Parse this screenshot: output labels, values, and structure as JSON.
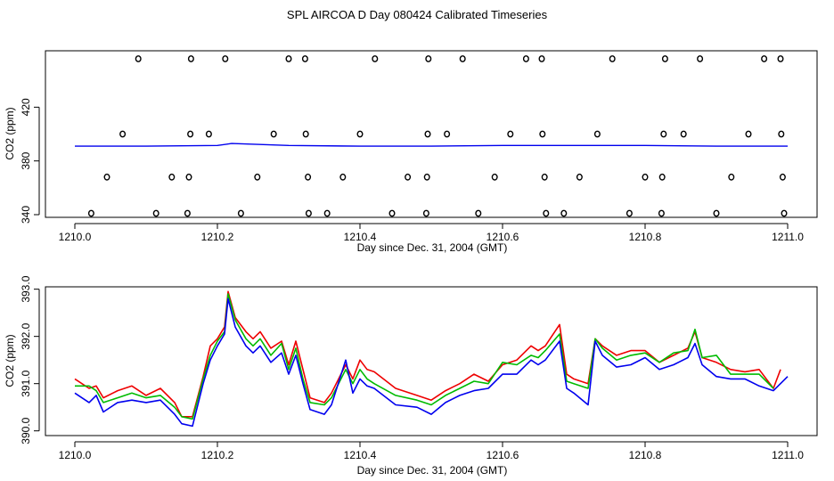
{
  "title": "SPL AIRCOA D  Day 080424  Calibrated Timeseries",
  "colors": {
    "red": "#ee0000",
    "green": "#00bb00",
    "blue": "#0000ee",
    "axis": "#000000"
  },
  "chart_data": [
    {
      "type": "scatter",
      "panel": "top",
      "xlabel": "Day since Dec. 31, 2004 (GMT)",
      "ylabel": "CO2 (ppm)",
      "xlim": [
        1210.0,
        1211.0
      ],
      "ylim": [
        338,
        462
      ],
      "xticks": [
        1210.0,
        1210.2,
        1210.4,
        1210.6,
        1210.8,
        1211.0
      ],
      "xtick_labels": [
        "1210.0",
        "1210.2",
        "1210.4",
        "1210.6",
        "1210.8",
        "1211.0"
      ],
      "yticks": [
        340,
        380,
        420
      ],
      "ytick_labels": [
        "340",
        "380",
        "420"
      ],
      "line_series": [
        {
          "name": "blue",
          "color": "#0000ee",
          "x": [
            1210.0,
            1210.1,
            1210.2,
            1210.22,
            1210.3,
            1210.4,
            1210.5,
            1210.6,
            1210.7,
            1210.8,
            1210.9,
            1211.0
          ],
          "y": [
            391,
            391,
            391.5,
            393,
            391.5,
            391,
            391,
            391.5,
            391.5,
            391.5,
            391,
            391
          ]
        }
      ],
      "marker_points": {
        "x": [
          1210.023,
          1210.045,
          1210.067,
          1210.089,
          1210.114,
          1210.136,
          1210.158,
          1210.16,
          1210.162,
          1210.163,
          1210.188,
          1210.211,
          1210.233,
          1210.256,
          1210.279,
          1210.3,
          1210.323,
          1210.324,
          1210.327,
          1210.328,
          1210.354,
          1210.376,
          1210.4,
          1210.421,
          1210.445,
          1210.467,
          1210.493,
          1210.494,
          1210.495,
          1210.496,
          1210.522,
          1210.544,
          1210.566,
          1210.589,
          1210.611,
          1210.633,
          1210.655,
          1210.656,
          1210.659,
          1210.661,
          1210.686,
          1210.708,
          1210.733,
          1210.754,
          1210.778,
          1210.8,
          1210.823,
          1210.824,
          1210.826,
          1210.828,
          1210.854,
          1210.877,
          1210.9,
          1210.921,
          1210.945,
          1210.967,
          1210.99,
          1210.991,
          1210.993,
          1210.995
        ],
        "y": [
          341,
          368,
          400,
          456,
          341,
          368,
          341,
          368,
          400,
          456,
          400,
          456,
          341,
          368,
          400,
          456,
          456,
          400,
          368,
          341,
          341,
          368,
          400,
          456,
          341,
          368,
          341,
          368,
          400,
          456,
          400,
          456,
          341,
          368,
          400,
          456,
          456,
          400,
          368,
          341,
          341,
          368,
          400,
          456,
          341,
          368,
          341,
          368,
          400,
          456,
          400,
          456,
          341,
          368,
          400,
          456,
          456,
          400,
          368,
          341
        ]
      }
    },
    {
      "type": "line",
      "panel": "bottom",
      "xlabel": "Day since Dec. 31, 2004 (GMT)",
      "ylabel": "CO2 (ppm)",
      "xlim": [
        1210.0,
        1211.0
      ],
      "ylim": [
        389.9,
        393.05
      ],
      "xticks": [
        1210.0,
        1210.2,
        1210.4,
        1210.6,
        1210.8,
        1211.0
      ],
      "xtick_labels": [
        "1210.0",
        "1210.2",
        "1210.4",
        "1210.6",
        "1210.8",
        "1211.0"
      ],
      "yticks": [
        390.0,
        391.0,
        392.0,
        393.0
      ],
      "ytick_labels": [
        "390.0",
        "391.0",
        "392.0",
        "393.0"
      ],
      "series": [
        {
          "name": "red",
          "color": "#ee0000",
          "x": [
            1210.0,
            1210.02,
            1210.03,
            1210.04,
            1210.06,
            1210.08,
            1210.1,
            1210.12,
            1210.14,
            1210.15,
            1210.165,
            1210.18,
            1210.19,
            1210.2,
            1210.21,
            1210.215,
            1210.225,
            1210.24,
            1210.25,
            1210.26,
            1210.275,
            1210.29,
            1210.3,
            1210.31,
            1210.32,
            1210.33,
            1210.35,
            1210.36,
            1210.38,
            1210.39,
            1210.4,
            1210.41,
            1210.42,
            1210.45,
            1210.48,
            1210.5,
            1210.52,
            1210.54,
            1210.56,
            1210.58,
            1210.6,
            1210.62,
            1210.64,
            1210.65,
            1210.66,
            1210.68,
            1210.69,
            1210.7,
            1210.72,
            1210.73,
            1210.74,
            1210.76,
            1210.78,
            1210.8,
            1210.82,
            1210.84,
            1210.86,
            1210.87,
            1210.88,
            1210.9,
            1210.92,
            1210.94,
            1210.96,
            1210.98,
            1210.99
          ],
          "y": [
            391.1,
            390.9,
            390.95,
            390.7,
            390.85,
            390.95,
            390.75,
            390.9,
            390.6,
            390.3,
            390.3,
            391.15,
            391.8,
            391.95,
            392.2,
            392.95,
            392.4,
            392.1,
            391.95,
            392.1,
            391.75,
            391.9,
            391.4,
            391.9,
            391.3,
            390.7,
            390.6,
            390.8,
            391.4,
            391.1,
            391.5,
            391.3,
            391.25,
            390.9,
            390.75,
            390.65,
            390.85,
            391.0,
            391.2,
            391.05,
            391.4,
            391.5,
            391.8,
            391.7,
            391.8,
            392.25,
            391.2,
            391.1,
            391.0,
            391.95,
            391.8,
            391.6,
            391.7,
            391.7,
            391.45,
            391.6,
            391.75,
            392.1,
            391.55,
            391.45,
            391.3,
            391.25,
            391.3,
            390.9,
            391.3
          ]
        },
        {
          "name": "green",
          "color": "#00bb00",
          "x": [
            1210.0,
            1210.02,
            1210.03,
            1210.04,
            1210.06,
            1210.08,
            1210.1,
            1210.12,
            1210.14,
            1210.15,
            1210.165,
            1210.18,
            1210.19,
            1210.2,
            1210.21,
            1210.215,
            1210.225,
            1210.24,
            1210.25,
            1210.26,
            1210.275,
            1210.29,
            1210.3,
            1210.31,
            1210.32,
            1210.33,
            1210.35,
            1210.36,
            1210.38,
            1210.39,
            1210.4,
            1210.41,
            1210.42,
            1210.45,
            1210.48,
            1210.5,
            1210.52,
            1210.54,
            1210.56,
            1210.58,
            1210.6,
            1210.62,
            1210.64,
            1210.65,
            1210.66,
            1210.68,
            1210.69,
            1210.7,
            1210.72,
            1210.73,
            1210.74,
            1210.76,
            1210.78,
            1210.8,
            1210.82,
            1210.84,
            1210.86,
            1210.87,
            1210.88,
            1210.9,
            1210.92,
            1210.94,
            1210.96,
            1210.98
          ],
          "y": [
            390.95,
            390.95,
            390.85,
            390.6,
            390.7,
            390.8,
            390.7,
            390.75,
            390.5,
            390.3,
            390.25,
            391.1,
            391.6,
            391.9,
            392.1,
            392.9,
            392.35,
            391.95,
            391.8,
            391.95,
            391.6,
            391.85,
            391.3,
            391.75,
            391.1,
            390.6,
            390.55,
            390.7,
            391.3,
            391.0,
            391.3,
            391.1,
            391.0,
            390.75,
            390.65,
            390.55,
            390.75,
            390.9,
            391.05,
            391.0,
            391.45,
            391.4,
            391.6,
            391.55,
            391.7,
            392.05,
            391.05,
            391.0,
            390.9,
            391.95,
            391.75,
            391.5,
            391.6,
            391.65,
            391.45,
            391.65,
            391.7,
            392.15,
            391.55,
            391.6,
            391.2,
            391.2,
            391.2,
            390.9
          ]
        },
        {
          "name": "blue",
          "color": "#0000ee",
          "x": [
            1210.0,
            1210.02,
            1210.03,
            1210.04,
            1210.06,
            1210.08,
            1210.1,
            1210.12,
            1210.14,
            1210.15,
            1210.165,
            1210.18,
            1210.19,
            1210.2,
            1210.21,
            1210.215,
            1210.225,
            1210.24,
            1210.25,
            1210.26,
            1210.275,
            1210.29,
            1210.3,
            1210.31,
            1210.32,
            1210.33,
            1210.35,
            1210.36,
            1210.38,
            1210.39,
            1210.4,
            1210.41,
            1210.42,
            1210.45,
            1210.48,
            1210.5,
            1210.52,
            1210.54,
            1210.56,
            1210.58,
            1210.6,
            1210.62,
            1210.64,
            1210.65,
            1210.66,
            1210.68,
            1210.69,
            1210.7,
            1210.72,
            1210.73,
            1210.74,
            1210.76,
            1210.78,
            1210.8,
            1210.82,
            1210.84,
            1210.86,
            1210.87,
            1210.88,
            1210.9,
            1210.92,
            1210.94,
            1210.96,
            1210.98,
            1211.0
          ],
          "y": [
            390.8,
            390.6,
            390.75,
            390.4,
            390.6,
            390.65,
            390.6,
            390.65,
            390.35,
            390.15,
            390.1,
            391.0,
            391.5,
            391.8,
            392.05,
            392.8,
            392.2,
            391.8,
            391.65,
            391.8,
            391.45,
            391.65,
            391.2,
            391.6,
            391.0,
            390.45,
            390.35,
            390.55,
            391.5,
            390.8,
            391.1,
            390.95,
            390.9,
            390.55,
            390.5,
            390.35,
            390.6,
            390.75,
            390.85,
            390.9,
            391.2,
            391.2,
            391.5,
            391.4,
            391.5,
            391.9,
            390.9,
            390.8,
            390.55,
            391.9,
            391.6,
            391.35,
            391.4,
            391.55,
            391.3,
            391.4,
            391.55,
            391.85,
            391.4,
            391.15,
            391.1,
            391.1,
            390.95,
            390.85,
            391.15
          ]
        }
      ]
    }
  ]
}
